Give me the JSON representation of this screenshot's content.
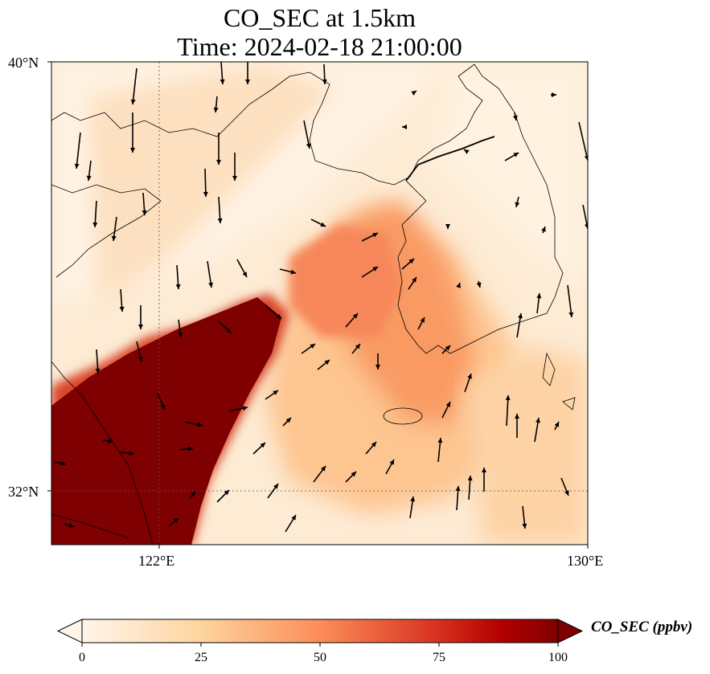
{
  "title_line1": "CO_SEC at 1.5km",
  "title_line2": "Time: 2024-02-18 21:00:00",
  "lat_labels": [
    "40°N",
    "32°N"
  ],
  "lon_labels": [
    "122°E",
    "130°E"
  ],
  "colorbar": {
    "label": "CO_SEC (ppbv)",
    "ticks": [
      "0",
      "25",
      "50",
      "75",
      "100"
    ],
    "colors": [
      "#fff5eb",
      "#fdd9a8",
      "#fc8d59",
      "#d7301f",
      "#990000",
      "#7f0000"
    ]
  },
  "colors": {
    "background_low": "#fff5eb",
    "high": "#7f0000",
    "coastline": "#000000"
  }
}
